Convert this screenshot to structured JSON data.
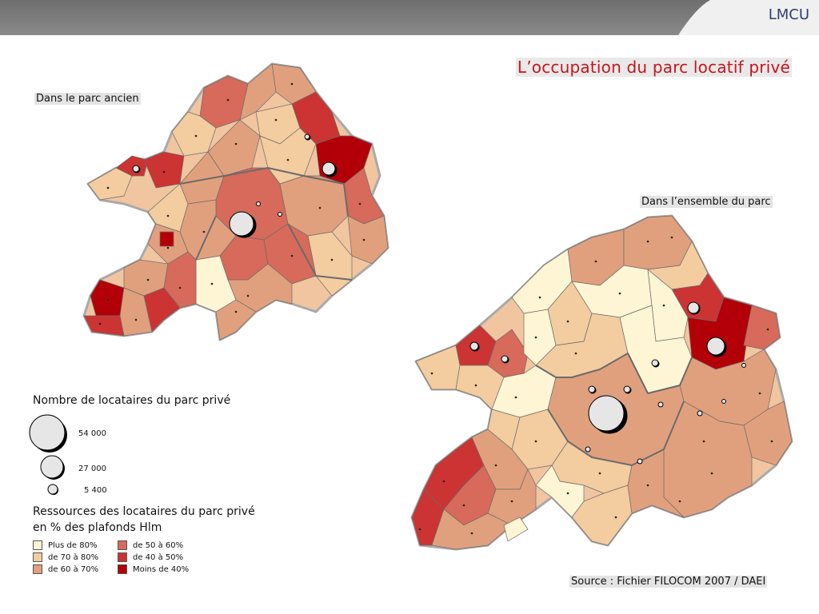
{
  "header": {
    "brand": "LMCU"
  },
  "title": "L’occupation du parc locatif privé",
  "maps": {
    "old_stock_label": "Dans le parc ancien",
    "all_stock_label": "Dans l’ensemble du parc"
  },
  "source": "Source : Fichier FILOCOM 2007 / DAEI",
  "legend": {
    "size_title": "Nombre de locataires du parc privé",
    "sizes": [
      {
        "label": "54 000"
      },
      {
        "label": "27 000"
      },
      {
        "label": "5 400"
      }
    ],
    "resources_title_line1": "Ressources des locataires du parc privé",
    "resources_title_line2": "en % des plafonds Hlm",
    "classes": [
      {
        "label": "Plus de 80%",
        "color": "#fdf5d4"
      },
      {
        "label": "de 70 à 80%",
        "color": "#f3cc9f"
      },
      {
        "label": "de 60 à 70%",
        "color": "#e1a07d"
      },
      {
        "label": "de 50 à 60%",
        "color": "#d76a5a"
      },
      {
        "label": "de 40 à 50%",
        "color": "#cc3333"
      },
      {
        "label": "Moins de 40%",
        "color": "#b30008"
      }
    ]
  }
}
